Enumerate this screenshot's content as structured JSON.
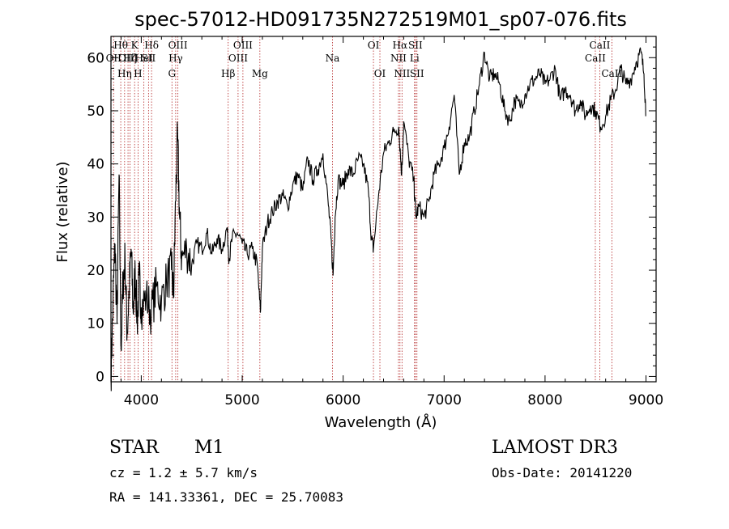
{
  "chart_data": {
    "type": "line",
    "title": "spec-57012-HD091735N272519M01_sp07-076.fits",
    "xlabel": "Wavelength (Å)",
    "ylabel": "Flux (relative)",
    "xlim": [
      3700,
      9100
    ],
    "ylim": [
      -1,
      64
    ],
    "x_ticks": [
      4000,
      5000,
      6000,
      7000,
      8000,
      9000
    ],
    "y_ticks": [
      0,
      10,
      20,
      30,
      40,
      50,
      60
    ],
    "grid": false,
    "series": [
      {
        "name": "spectrum",
        "x": [
          3700,
          3720,
          3740,
          3760,
          3780,
          3800,
          3820,
          3840,
          3860,
          3880,
          3900,
          3920,
          3940,
          3960,
          3980,
          4000,
          4050,
          4100,
          4150,
          4200,
          4250,
          4300,
          4320,
          4340,
          4360,
          4380,
          4400,
          4450,
          4500,
          4550,
          4600,
          4650,
          4700,
          4750,
          4800,
          4850,
          4870,
          4900,
          4950,
          5000,
          5050,
          5100,
          5150,
          5180,
          5200,
          5250,
          5300,
          5350,
          5400,
          5450,
          5500,
          5550,
          5600,
          5650,
          5700,
          5750,
          5800,
          5850,
          5880,
          5900,
          5920,
          5950,
          6000,
          6050,
          6100,
          6150,
          6200,
          6250,
          6280,
          6300,
          6350,
          6400,
          6450,
          6500,
          6550,
          6580,
          6600,
          6650,
          6700,
          6720,
          6750,
          6800,
          6850,
          6900,
          6950,
          7000,
          7050,
          7100,
          7150,
          7200,
          7250,
          7300,
          7350,
          7400,
          7450,
          7500,
          7550,
          7600,
          7650,
          7700,
          7750,
          7800,
          7850,
          7900,
          7950,
          8000,
          8050,
          8100,
          8150,
          8200,
          8250,
          8300,
          8350,
          8400,
          8450,
          8500,
          8550,
          8600,
          8650,
          8700,
          8750,
          8800,
          8850,
          8900,
          8950,
          8980,
          9000
        ],
        "y": [
          0,
          14,
          25,
          10,
          38,
          5,
          18,
          22,
          8,
          16,
          24,
          12,
          20,
          10,
          19,
          13,
          15,
          12,
          17,
          14,
          18,
          20,
          15,
          33,
          45,
          30,
          22,
          24,
          21,
          25,
          24,
          27,
          23,
          26,
          24,
          28,
          22,
          26,
          27,
          25,
          23,
          24,
          21,
          12,
          24,
          29,
          31,
          33,
          34,
          32,
          36,
          38,
          35,
          41,
          37,
          39,
          42,
          33,
          26,
          19,
          30,
          37,
          36,
          39,
          38,
          41,
          40,
          35,
          26,
          24,
          34,
          42,
          44,
          46,
          47,
          38,
          48,
          41,
          37,
          30,
          32,
          30,
          33,
          38,
          40,
          43,
          47,
          53,
          38,
          44,
          45,
          50,
          55,
          61,
          56,
          57,
          55,
          50,
          48,
          52,
          51,
          53,
          55,
          56,
          57,
          55,
          56,
          58,
          52,
          54,
          53,
          50,
          52,
          49,
          51,
          50,
          47,
          49,
          52,
          54,
          58,
          55,
          56,
          59,
          61,
          57,
          49
        ]
      }
    ],
    "line_markers": [
      {
        "x": 3726,
        "label": "OII",
        "row": 1
      },
      {
        "x": 3797,
        "label": "Hθ",
        "row": 0
      },
      {
        "x": 3835,
        "label": "Hη",
        "row": 2
      },
      {
        "x": 3869,
        "label": "OIII",
        "row": 1
      },
      {
        "x": 3889,
        "label": "Hζ",
        "row": 1
      },
      {
        "x": 3934,
        "label": "K",
        "row": 0
      },
      {
        "x": 3968,
        "label": "H",
        "row": 2
      },
      {
        "x": 4026,
        "label": "HeI",
        "row": 1
      },
      {
        "x": 4072,
        "label": "SII",
        "row": 1
      },
      {
        "x": 4102,
        "label": "Hδ",
        "row": 0
      },
      {
        "x": 4304,
        "label": "G",
        "row": 2
      },
      {
        "x": 4341,
        "label": "Hγ",
        "row": 1
      },
      {
        "x": 4363,
        "label": "OIII",
        "row": 0
      },
      {
        "x": 4861,
        "label": "Hβ",
        "row": 2
      },
      {
        "x": 4959,
        "label": "OIII",
        "row": 1
      },
      {
        "x": 5007,
        "label": "OIII",
        "row": 0
      },
      {
        "x": 5175,
        "label": "Mg",
        "row": 2
      },
      {
        "x": 5894,
        "label": "Na",
        "row": 1
      },
      {
        "x": 6300,
        "label": "OI",
        "row": 0
      },
      {
        "x": 6364,
        "label": "OI",
        "row": 2
      },
      {
        "x": 6548,
        "label": "NII",
        "row": 1
      },
      {
        "x": 6563,
        "label": "Hα",
        "row": 0
      },
      {
        "x": 6583,
        "label": "NII",
        "row": 2
      },
      {
        "x": 6707,
        "label": "Li",
        "row": 1
      },
      {
        "x": 6716,
        "label": "SII",
        "row": 0
      },
      {
        "x": 6731,
        "label": "SII",
        "row": 2
      },
      {
        "x": 8498,
        "label": "CaII",
        "row": 1
      },
      {
        "x": 8542,
        "label": "CaII",
        "row": 0
      },
      {
        "x": 8662,
        "label": "CaII",
        "row": 2
      }
    ]
  },
  "info": {
    "object_class": "STAR",
    "subclass": "M1",
    "survey": "LAMOST DR3",
    "cz": "cz = 1.2 ± 5.7 km/s",
    "obs_date": "Obs-Date: 20141220",
    "coords": "RA = 141.33361, DEC =  25.70083"
  },
  "colors": {
    "spectrum": "#000000",
    "marker": "#b22222"
  }
}
